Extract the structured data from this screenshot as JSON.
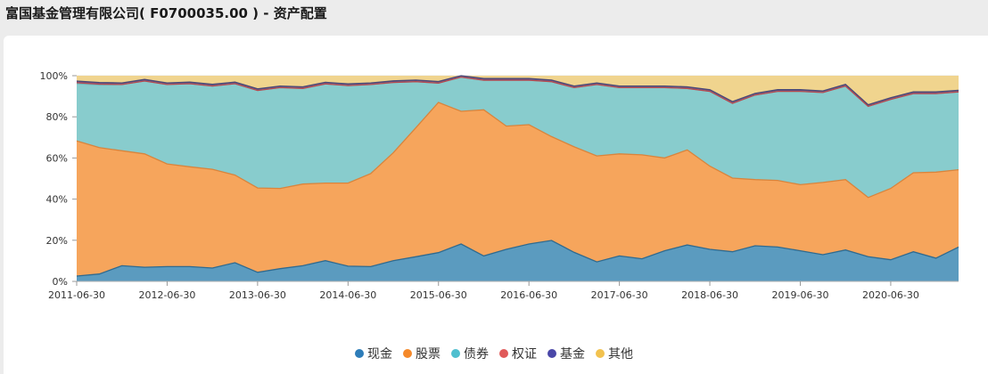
{
  "header": {
    "title": "富国基金管理有限公司( F0700035.00 ) - 资产配置"
  },
  "chart_data": {
    "type": "area",
    "stacked": true,
    "normalized": true,
    "title": "",
    "xlabel": "",
    "ylabel": "",
    "ylim": [
      0,
      100
    ],
    "y_ticks": [
      "0%",
      "20%",
      "40%",
      "60%",
      "80%",
      "100%"
    ],
    "x_tick_labels": [
      "2011-06-30",
      "2012-06-30",
      "2013-06-30",
      "2014-06-30",
      "2015-06-30",
      "2016-06-30",
      "2017-06-30",
      "2018-06-30",
      "2019-06-30",
      "2020-06-30"
    ],
    "grid": "horizontal",
    "legend_position": "bottom",
    "categories": [
      "2011-06-30",
      "2011-09-30",
      "2011-12-31",
      "2012-03-31",
      "2012-06-30",
      "2012-09-30",
      "2012-12-31",
      "2013-03-31",
      "2013-06-30",
      "2013-09-30",
      "2013-12-31",
      "2014-03-31",
      "2014-06-30",
      "2014-09-30",
      "2014-12-31",
      "2015-03-31",
      "2015-06-30",
      "2015-09-30",
      "2015-12-31",
      "2016-03-31",
      "2016-06-30",
      "2016-09-30",
      "2016-12-31",
      "2017-03-31",
      "2017-06-30",
      "2017-09-30",
      "2017-12-31",
      "2018-03-31",
      "2018-06-30",
      "2018-09-30",
      "2018-12-31",
      "2019-03-31",
      "2019-06-30",
      "2019-09-30",
      "2019-12-31",
      "2020-03-31",
      "2020-06-30",
      "2020-09-30",
      "2020-12-31",
      "2021-03-31"
    ],
    "series": [
      {
        "name": "现金",
        "color": "#2e7db9",
        "fill": "#5b9bbf",
        "line": "#2f6a8f",
        "values": [
          2.6,
          3.6,
          7.6,
          6.9,
          7.2,
          7.2,
          6.5,
          9.1,
          4.4,
          6.2,
          7.6,
          10.1,
          7.4,
          7.2,
          10.1,
          12.0,
          14.0,
          18.2,
          12.4,
          15.6,
          18.2,
          19.9,
          14.1,
          9.5,
          12.4,
          11.0,
          14.9,
          17.7,
          15.6,
          14.4,
          17.3,
          16.7,
          14.9,
          13.0,
          15.3,
          12.0,
          10.5,
          14.4,
          11.3,
          16.7
        ]
      },
      {
        "name": "股票",
        "color": "#f5892a",
        "fill": "#f6a55c",
        "line": "#d9843c",
        "values": [
          65.7,
          61.4,
          55.9,
          55.1,
          49.9,
          48.5,
          48.0,
          42.6,
          41.0,
          39.0,
          39.7,
          37.7,
          40.4,
          45.2,
          52.4,
          62.7,
          73.0,
          64.5,
          71.0,
          59.9,
          58.0,
          50.5,
          51.3,
          51.5,
          49.6,
          50.5,
          45.1,
          46.2,
          40.4,
          35.8,
          32.2,
          32.4,
          32.1,
          35.1,
          34.2,
          28.8,
          34.7,
          38.4,
          41.8,
          37.6
        ]
      },
      {
        "name": "债券",
        "color": "#4fbfcf",
        "fill": "#88cccd",
        "line": "#6fb5b8",
        "values": [
          27.8,
          30.5,
          32.2,
          35.4,
          38.6,
          40.4,
          40.5,
          44.4,
          47.4,
          49.0,
          46.5,
          48.2,
          47.4,
          43.3,
          34.2,
          22.4,
          9.4,
          16.6,
          14.4,
          22.3,
          21.6,
          26.7,
          28.8,
          34.7,
          32.2,
          32.7,
          34.2,
          29.9,
          36.4,
          36.4,
          41.1,
          43.3,
          45.4,
          43.7,
          45.5,
          44.3,
          43.3,
          38.5,
          38.2,
          37.8
        ]
      },
      {
        "name": "权证",
        "color": "#e05a5a",
        "fill": "#c9555a",
        "line": "#b8474d",
        "values": [
          0.5,
          0.4,
          0,
          0,
          0,
          0,
          0,
          0,
          0,
          0,
          0,
          0,
          0,
          0,
          0,
          0,
          0,
          0,
          0,
          0,
          0,
          0,
          0,
          0,
          0,
          0,
          0,
          0,
          0,
          0,
          0,
          0,
          0,
          0,
          0,
          0,
          0,
          0,
          0,
          0
        ]
      },
      {
        "name": "基金",
        "color": "#4a47a8",
        "fill": "#6a5a8c",
        "line": "#4b4775",
        "values": [
          0.8,
          0.8,
          0.8,
          0.8,
          0.8,
          0.8,
          0.8,
          0.8,
          0.8,
          0.8,
          0.8,
          0.8,
          0.8,
          0.8,
          0.8,
          0.8,
          0.8,
          0.7,
          0.8,
          0.8,
          0.8,
          0.8,
          0.8,
          0.8,
          0.8,
          0.8,
          0.8,
          0.8,
          0.8,
          0.8,
          0.8,
          0.8,
          0.8,
          0.8,
          0.8,
          0.8,
          0.8,
          0.8,
          0.8,
          0.8
        ]
      },
      {
        "name": "其他",
        "color": "#f2c24f",
        "fill": "#f0d48e",
        "line": "#e8c56f",
        "values": [
          2.6,
          3.3,
          3.5,
          1.8,
          3.5,
          3.1,
          4.2,
          3.1,
          6.4,
          5.0,
          5.4,
          3.2,
          4.0,
          3.5,
          2.5,
          2.1,
          2.8,
          0.0,
          1.4,
          1.4,
          1.4,
          2.1,
          5.0,
          3.5,
          5.0,
          5.0,
          5.0,
          5.4,
          6.8,
          12.6,
          8.6,
          6.8,
          6.8,
          7.4,
          4.2,
          14.1,
          10.7,
          7.9,
          7.9,
          7.1
        ]
      }
    ]
  },
  "legend": {
    "items": [
      {
        "label": "现金",
        "color": "#2e7db9"
      },
      {
        "label": "股票",
        "color": "#f5892a"
      },
      {
        "label": "债券",
        "color": "#4fbfcf"
      },
      {
        "label": "权证",
        "color": "#e05a5a"
      },
      {
        "label": "基金",
        "color": "#4a47a8"
      },
      {
        "label": "其他",
        "color": "#f2c24f"
      }
    ]
  }
}
